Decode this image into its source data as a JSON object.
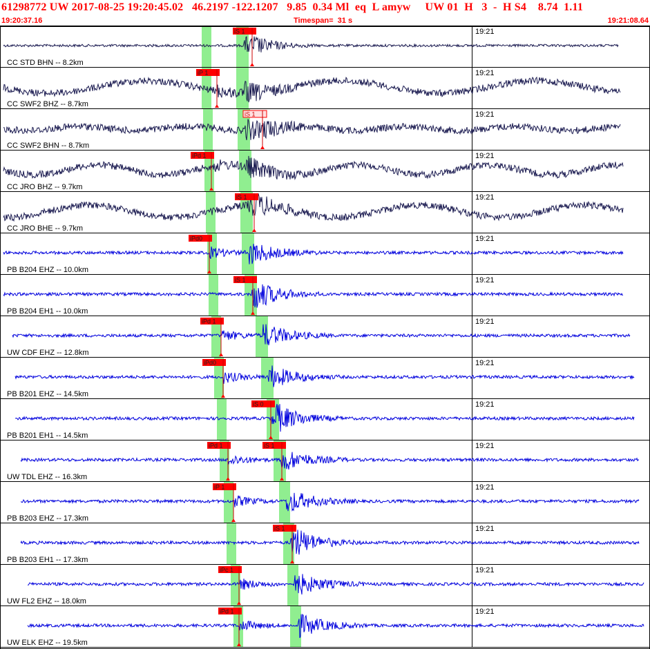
{
  "header": {
    "title": "61298772 UW 2017-08-25 19:20:45.02   46.2197 -122.1207   9.85  0.34 Ml  eq  L amyw     UW 01  H   3  -  H S4    8.74  1.11",
    "start_time": "19:20:37.16",
    "timespan": "Timespan=  31 s",
    "end_time": "19:21:08.64"
  },
  "colors": {
    "header_text": "#ff0000",
    "trace_broadband": "#1a1a50",
    "trace_short_period": "#0000dd",
    "pick_band": "#90ee90",
    "pick_flag": "#ff0000",
    "pick_line": "#cc0000",
    "label_text": "#000000",
    "minute_line": "#000000"
  },
  "minute_label": "19:21",
  "channels": [
    {
      "id": "ch1",
      "label": "CC STD BHN -- 8.2km",
      "color": "broadband",
      "amp": "low",
      "picks": [
        {
          "label": "iS 1",
          "type": "S",
          "sel": false
        }
      ]
    },
    {
      "id": "ch2",
      "label": "CC SWF2 BHZ -- 8.7km",
      "color": "broadband",
      "amp": "wavy",
      "picks": [
        {
          "label": "iP 1",
          "type": "P",
          "sel": false
        }
      ]
    },
    {
      "id": "ch3",
      "label": "CC SWF2 BHN -- 8.7km",
      "color": "broadband",
      "amp": "med",
      "picks": [
        {
          "label": "iS 1",
          "type": "S",
          "sel": true
        }
      ]
    },
    {
      "id": "ch4",
      "label": "CC JRO BHZ -- 9.7km",
      "color": "broadband",
      "amp": "high",
      "picks": [
        {
          "label": "iPd 1",
          "type": "P",
          "sel": false
        }
      ]
    },
    {
      "id": "ch5",
      "label": "CC JRO BHE -- 9.7km",
      "color": "broadband",
      "amp": "wavy2",
      "picks": [
        {
          "label": "iS 1",
          "type": "S",
          "sel": false
        }
      ]
    },
    {
      "id": "ch6",
      "label": "PB B204 EHZ -- 10.0km",
      "color": "short_period",
      "amp": "sp",
      "picks": [
        {
          "label": "iPd0",
          "type": "P",
          "sel": false
        }
      ]
    },
    {
      "id": "ch7",
      "label": "PB B204 EH1 -- 10.0km",
      "color": "short_period",
      "amp": "sp",
      "picks": [
        {
          "label": "iS 1",
          "type": "S",
          "sel": false
        }
      ]
    },
    {
      "id": "ch8",
      "label": "UW CDF EHZ -- 12.8km",
      "color": "short_period",
      "amp": "sp",
      "picks": [
        {
          "label": "iPd 1",
          "type": "P",
          "sel": false
        }
      ]
    },
    {
      "id": "ch9",
      "label": "PB B201 EHZ -- 14.5km",
      "color": "short_period",
      "amp": "sp",
      "picks": [
        {
          "label": "iPd0",
          "type": "P",
          "sel": false
        }
      ]
    },
    {
      "id": "ch10",
      "label": "PB B201 EH1 -- 14.5km",
      "color": "short_period",
      "amp": "sp",
      "picks": [
        {
          "label": "iS 0",
          "type": "S",
          "sel": false
        }
      ]
    },
    {
      "id": "ch11",
      "label": "UW TDL EHZ -- 16.3km",
      "color": "short_period",
      "amp": "sp",
      "picks": [
        {
          "label": "iPd 1",
          "type": "P",
          "sel": false
        },
        {
          "label": "iS 1",
          "type": "S",
          "sel": false
        }
      ]
    },
    {
      "id": "ch12",
      "label": "PB B203 EHZ -- 17.3km",
      "color": "short_period",
      "amp": "sp",
      "picks": [
        {
          "label": "iP 1",
          "type": "P",
          "sel": false
        }
      ]
    },
    {
      "id": "ch13",
      "label": "PB B203 EH1 -- 17.3km",
      "color": "short_period",
      "amp": "sp",
      "picks": [
        {
          "label": "iS 1",
          "type": "S",
          "sel": false
        }
      ]
    },
    {
      "id": "ch14",
      "label": "UW FL2 EHZ -- 18.0km",
      "color": "short_period",
      "amp": "sp",
      "picks": [
        {
          "label": "iPc 1",
          "type": "P",
          "sel": false
        }
      ]
    },
    {
      "id": "ch15",
      "label": "UW ELK EHZ -- 19.5km",
      "color": "short_period",
      "amp": "sp",
      "picks": [
        {
          "label": "iPd 1",
          "type": "P",
          "sel": false
        }
      ]
    }
  ]
}
